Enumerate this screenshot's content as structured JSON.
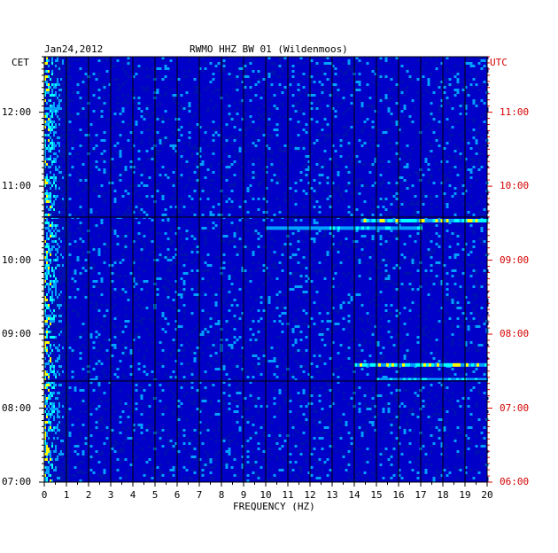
{
  "header": {
    "date": "Jan24,2012",
    "station": "RWMO HHZ BW 01 (Wildenmoos)"
  },
  "chart_data": {
    "type": "heatmap",
    "title": "RWMO HHZ BW 01 (Wildenmoos)",
    "xlabel": "FREQUENCY (HZ)",
    "xlim": [
      0,
      20
    ],
    "x_ticks": [
      "0",
      "1",
      "2",
      "3",
      "4",
      "5",
      "6",
      "7",
      "8",
      "9",
      "10",
      "11",
      "12",
      "13",
      "14",
      "15",
      "16",
      "17",
      "18",
      "19",
      "20"
    ],
    "left_axis_label": "CET",
    "right_axis_label": "UTC",
    "left_ticks": [
      "12:00",
      "11:00",
      "10:00",
      "09:00",
      "08:00",
      "07:00"
    ],
    "right_ticks": [
      "11:00",
      "10:00",
      "09:00",
      "08:00",
      "07:00",
      "06:00"
    ],
    "time_range_cet": [
      "07:00",
      "12:45"
    ],
    "colors": {
      "background": "#0000c8",
      "low": "#0010b0",
      "mid": "#00a0ff",
      "high": "#00ffff",
      "peak": "#ffff00",
      "max": "#ff0000",
      "grid": "#000000",
      "utc": "#d40000"
    },
    "notable_bands": [
      {
        "time_cet": "10:32",
        "freq_range": [
          14.3,
          20
        ],
        "level": "high"
      },
      {
        "time_cet": "10:26",
        "freq_range": [
          10.0,
          17.0
        ],
        "level": "mid"
      },
      {
        "time_cet": "08:35",
        "freq_range": [
          14.0,
          20
        ],
        "level": "high"
      },
      {
        "time_cet": "08:23",
        "freq_range": [
          15.0,
          20
        ],
        "level": "mid"
      }
    ]
  }
}
